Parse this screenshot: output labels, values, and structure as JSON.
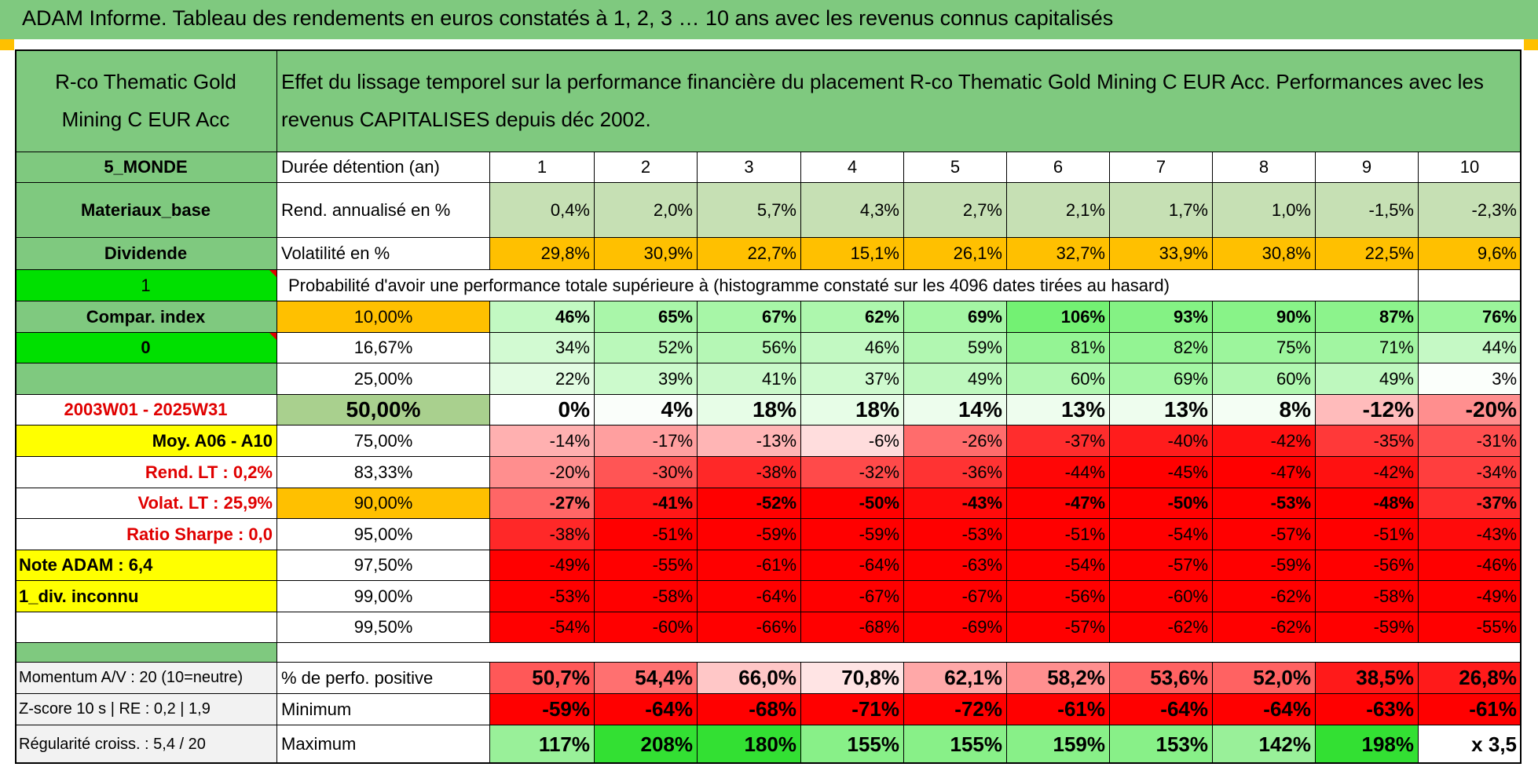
{
  "banner_title": "ADAM Informe. Tableau des rendements en euros constatés à 1, 2, 3 … 10 ans avec les revenus connus capitalisés",
  "fund_name": "R-co Thematic Gold Mining C EUR Acc",
  "description": "Effet du lissage temporel sur la performance financière du placement R-co Thematic Gold Mining C EUR Acc. Performances avec les revenus CAPITALISES depuis déc 2002.",
  "left_labels": {
    "zone": "5_MONDE",
    "sector": "Materiaux_base",
    "dividend": "Dividende",
    "dividend_flag": "1",
    "compar_index": "Compar. index",
    "index_flag": "0",
    "period": "2003W01 - 2025W31",
    "moy": "Moy. A06 - A10",
    "rend_lt": "Rend. LT :    0,2%",
    "volat_lt": "Volat. LT :    25,9%",
    "sharpe": "Ratio Sharpe :    0,0",
    "note": "Note ADAM : 6,4",
    "div_info": "1_div. inconnu"
  },
  "header_row": {
    "label": "Durée détention (an)",
    "years": [
      "1",
      "2",
      "3",
      "4",
      "5",
      "6",
      "7",
      "8",
      "9",
      "10"
    ]
  },
  "rend_row": {
    "label": "Rend. annualisé en %",
    "values": [
      "0,4%",
      "2,0%",
      "5,7%",
      "4,3%",
      "2,7%",
      "2,1%",
      "1,7%",
      "1,0%",
      "-1,5%",
      "-2,3%"
    ]
  },
  "vol_row": {
    "label": "Volatilité en %",
    "values": [
      "29,8%",
      "30,9%",
      "22,7%",
      "15,1%",
      "26,1%",
      "32,7%",
      "33,9%",
      "30,8%",
      "22,5%",
      "9,6%"
    ]
  },
  "probability_title": "Probabilité d'avoir une performance totale supérieure à (histogramme constaté sur les 4096 dates tirées au hasard)",
  "prob_rows": [
    {
      "threshold": "10,00%",
      "values": [
        "46%",
        "65%",
        "67%",
        "62%",
        "69%",
        "106%",
        "93%",
        "90%",
        "87%",
        "76%"
      ]
    },
    {
      "threshold": "16,67%",
      "values": [
        "34%",
        "52%",
        "56%",
        "46%",
        "59%",
        "81%",
        "82%",
        "75%",
        "71%",
        "44%"
      ]
    },
    {
      "threshold": "25,00%",
      "values": [
        "22%",
        "39%",
        "41%",
        "37%",
        "49%",
        "60%",
        "69%",
        "60%",
        "49%",
        "3%"
      ]
    },
    {
      "threshold": "50,00%",
      "values": [
        "0%",
        "4%",
        "18%",
        "18%",
        "14%",
        "13%",
        "13%",
        "8%",
        "-12%",
        "-20%"
      ]
    },
    {
      "threshold": "75,00%",
      "values": [
        "-14%",
        "-17%",
        "-13%",
        "-6%",
        "-26%",
        "-37%",
        "-40%",
        "-42%",
        "-35%",
        "-31%"
      ]
    },
    {
      "threshold": "83,33%",
      "values": [
        "-20%",
        "-30%",
        "-38%",
        "-32%",
        "-36%",
        "-44%",
        "-45%",
        "-47%",
        "-42%",
        "-34%"
      ]
    },
    {
      "threshold": "90,00%",
      "values": [
        "-27%",
        "-41%",
        "-52%",
        "-50%",
        "-43%",
        "-47%",
        "-50%",
        "-53%",
        "-48%",
        "-37%"
      ]
    },
    {
      "threshold": "95,00%",
      "values": [
        "-38%",
        "-51%",
        "-59%",
        "-59%",
        "-53%",
        "-51%",
        "-54%",
        "-57%",
        "-51%",
        "-43%"
      ]
    },
    {
      "threshold": "97,50%",
      "values": [
        "-49%",
        "-55%",
        "-61%",
        "-64%",
        "-63%",
        "-54%",
        "-57%",
        "-59%",
        "-56%",
        "-46%"
      ]
    },
    {
      "threshold": "99,00%",
      "values": [
        "-53%",
        "-58%",
        "-64%",
        "-67%",
        "-67%",
        "-56%",
        "-60%",
        "-62%",
        "-58%",
        "-49%"
      ]
    },
    {
      "threshold": "99,50%",
      "values": [
        "-54%",
        "-60%",
        "-66%",
        "-68%",
        "-69%",
        "-57%",
        "-62%",
        "-62%",
        "-59%",
        "-55%"
      ]
    }
  ],
  "bottom_rows": [
    {
      "left": "Momentum A/V : 20 (10=neutre)",
      "label": "% de perfo. positive",
      "values": [
        "50,7%",
        "54,4%",
        "66,0%",
        "70,8%",
        "62,1%",
        "58,2%",
        "53,6%",
        "52,0%",
        "38,5%",
        "26,8%"
      ]
    },
    {
      "left": "Z-score 10 s | RE : 0,2 | 1,9",
      "label": "Minimum",
      "values": [
        "-59%",
        "-64%",
        "-68%",
        "-71%",
        "-72%",
        "-61%",
        "-64%",
        "-64%",
        "-63%",
        "-61%"
      ]
    },
    {
      "left": "Régularité croiss. : 5,4 / 20",
      "label": "Maximum",
      "values": [
        "117%",
        "208%",
        "180%",
        "155%",
        "155%",
        "159%",
        "153%",
        "142%",
        "198%",
        "x 3,5"
      ]
    }
  ],
  "colors": {
    "banner": "#7fc97f",
    "label_green": "#7fc97f",
    "bright_green": "#00e000",
    "yellow": "#ffff00",
    "orange": "#ffc000",
    "red_text": "#e00000"
  }
}
